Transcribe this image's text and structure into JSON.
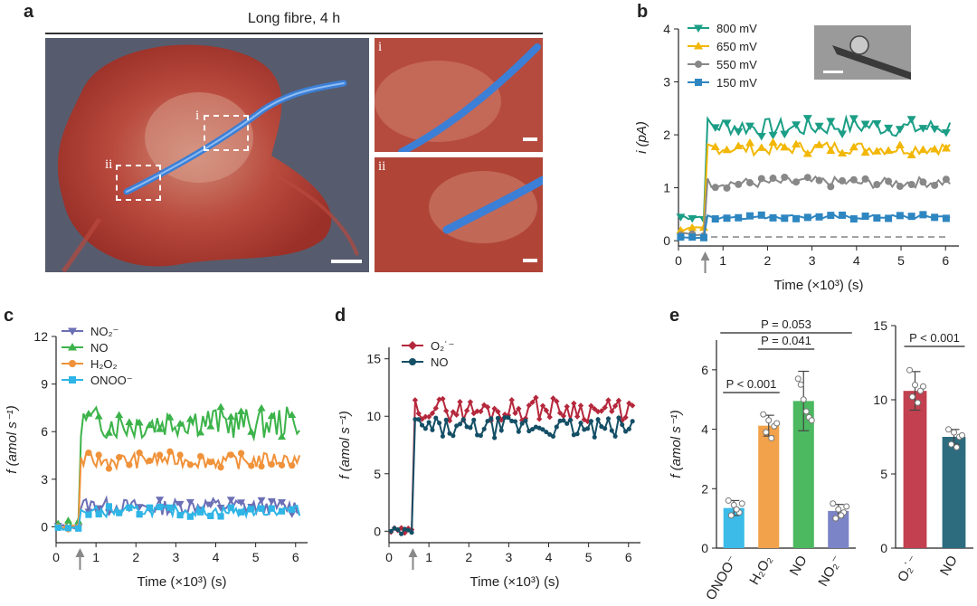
{
  "panel_labels": {
    "a": "a",
    "b": "b",
    "c": "c",
    "d": "d",
    "e": "e"
  },
  "panel_a": {
    "title": "Long fibre, 4 h",
    "inset_i": "i",
    "inset_ii": "ii",
    "colors": {
      "cell": "#b7463a",
      "fibre": "#3c7fd6",
      "background": "#565c6e"
    }
  },
  "chart_data": [
    {
      "panel": "b",
      "type": "line",
      "xlabel": "Time (×10³) (s)",
      "ylabel": "i (pA)",
      "xlim": [
        0,
        6.3
      ],
      "ylim": [
        -0.1,
        4
      ],
      "xticks": [
        0,
        1,
        2,
        3,
        4,
        5,
        6
      ],
      "yticks": [
        0,
        1,
        2,
        3,
        4
      ],
      "stimulus_arrow_x": 0.6,
      "baseline_dashed_y": 0.07,
      "series": [
        {
          "name": "800 mV",
          "color": "#1b9e86",
          "marker": "triangle-down",
          "baseline": 0.45,
          "step": 2.15,
          "amp": 0.18
        },
        {
          "name": "650 mV",
          "color": "#f2b705",
          "marker": "triangle-up",
          "baseline": 0.22,
          "step": 1.75,
          "amp": 0.12
        },
        {
          "name": "550 mV",
          "color": "#888888",
          "marker": "circle",
          "baseline": 0.12,
          "step": 1.1,
          "amp": 0.1
        },
        {
          "name": "150 mV",
          "color": "#2e86c1",
          "marker": "square",
          "baseline": 0.06,
          "step": 0.45,
          "amp": 0.04
        }
      ]
    },
    {
      "panel": "c",
      "type": "line",
      "xlabel": "Time (×10³) (s)",
      "ylabel": "f (amol s⁻¹)",
      "xlim": [
        0,
        6.3
      ],
      "ylim": [
        -1,
        12
      ],
      "xticks": [
        0,
        1,
        2,
        3,
        4,
        5,
        6
      ],
      "yticks": [
        0,
        3,
        6,
        9,
        12
      ],
      "stimulus_arrow_x": 0.6,
      "series": [
        {
          "name": "NO₂⁻",
          "color": "#6b6fb5",
          "marker": "triangle-down",
          "baseline": 0.0,
          "step": 1.3,
          "amp": 0.5
        },
        {
          "name": "NO",
          "color": "#3cb34a",
          "marker": "triangle-up",
          "baseline": 0.1,
          "step": 6.6,
          "amp": 1.0
        },
        {
          "name": "H₂O₂",
          "color": "#f0923a",
          "marker": "circle",
          "baseline": 0.0,
          "step": 4.2,
          "amp": 0.5
        },
        {
          "name": "ONOO⁻",
          "color": "#2fb5e6",
          "marker": "square",
          "baseline": -0.1,
          "step": 1.0,
          "amp": 0.35
        }
      ]
    },
    {
      "panel": "d",
      "type": "line",
      "xlabel": "Time (×10³) (s)",
      "ylabel": "f (amol s⁻¹)",
      "xlim": [
        0,
        6.3
      ],
      "ylim": [
        -1,
        16
      ],
      "xticks": [
        0,
        1,
        2,
        3,
        4,
        5,
        6
      ],
      "yticks": [
        0,
        5,
        10,
        15
      ],
      "stimulus_arrow_x": 0.6,
      "series": [
        {
          "name": "O₂˙⁻",
          "color": "#b5283c",
          "marker": "diamond",
          "baseline": 0.0,
          "step": 10.6,
          "amp": 1.0
        },
        {
          "name": "NO",
          "color": "#144f66",
          "marker": "circle",
          "baseline": 0.0,
          "step": 9.0,
          "amp": 0.9
        }
      ]
    },
    {
      "panel": "e-left",
      "type": "bar",
      "ylabel": "f (amol s⁻¹)",
      "ylim": [
        0,
        7
      ],
      "yticks": [
        0,
        2,
        4,
        6
      ],
      "categories": [
        "ONOO⁻",
        "H₂O₂",
        "NO",
        "NO₂⁻"
      ],
      "values": [
        1.35,
        4.12,
        4.95,
        1.25
      ],
      "errors": [
        0.25,
        0.35,
        1.0,
        0.22
      ],
      "colors": [
        "#3cbbe8",
        "#f2a24a",
        "#4cb860",
        "#7b84c6"
      ],
      "points": [
        [
          1.6,
          1.45,
          1.2,
          1.1,
          1.3,
          1.5
        ],
        [
          4.5,
          4.3,
          4.1,
          3.9,
          3.7,
          4.2
        ],
        [
          5.7,
          5.0,
          4.4,
          5.5,
          4.6,
          4.3
        ],
        [
          1.5,
          1.3,
          1.2,
          1.0,
          1.1,
          1.4
        ]
      ],
      "significance": [
        {
          "label": "P < 0.001",
          "from": 0,
          "to": 1
        },
        {
          "label": "P = 0.041",
          "from": 1,
          "to": 2
        },
        {
          "label": "P = 0.053",
          "from": 0,
          "to": 3
        }
      ]
    },
    {
      "panel": "e-right",
      "type": "bar",
      "ylim": [
        0,
        15
      ],
      "yticks": [
        0,
        5,
        10,
        15
      ],
      "categories": [
        "O₂˙⁻",
        "NO"
      ],
      "values": [
        10.6,
        7.5
      ],
      "errors": [
        1.3,
        0.5
      ],
      "colors": [
        "#c2404f",
        "#2d6c7e"
      ],
      "points": [
        [
          12.0,
          11.0,
          10.6,
          10.2,
          9.8,
          10.9
        ],
        [
          8.0,
          7.8,
          7.5,
          7.0,
          6.8,
          7.6
        ]
      ],
      "significance": [
        {
          "label": "P < 0.001",
          "from": 0,
          "to": 1
        }
      ]
    }
  ]
}
